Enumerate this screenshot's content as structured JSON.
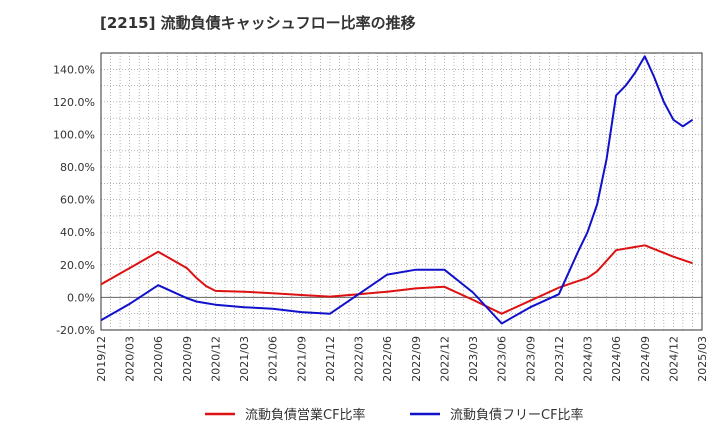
{
  "chart_data": {
    "type": "line",
    "title": "[2215]  流動負債キャッシュフロー比率の推移",
    "xlabel": "",
    "ylabel": "",
    "ylim": [
      -20,
      150
    ],
    "y_ticks": [
      "-20.0%",
      "0.0%",
      "20.0%",
      "40.0%",
      "60.0%",
      "80.0%",
      "100.0%",
      "120.0%",
      "140.0%"
    ],
    "y_tick_values": [
      -20,
      0,
      20,
      40,
      60,
      80,
      100,
      120,
      140
    ],
    "x_tick_labels": [
      "2019/12",
      "2020/03",
      "2020/06",
      "2020/09",
      "2020/12",
      "2021/03",
      "2021/06",
      "2021/09",
      "2021/12",
      "2022/03",
      "2022/06",
      "2022/09",
      "2022/12",
      "2023/03",
      "2023/06",
      "2023/09",
      "2023/12",
      "2024/03",
      "2024/06",
      "2024/09",
      "2024/12",
      "2025/03"
    ],
    "x_range_months": [
      0,
      63
    ],
    "series": [
      {
        "name": "流動負債営業CF比率",
        "color": "#dd1111",
        "x": [
          0,
          3,
          6,
          9,
          10,
          11,
          12,
          15,
          18,
          21,
          24,
          27,
          30,
          33,
          36,
          39,
          42,
          45,
          48,
          50,
          51,
          52,
          54,
          57,
          60,
          62
        ],
        "values": [
          8,
          18,
          28,
          18,
          12,
          7,
          4,
          3.5,
          2.5,
          1.5,
          0.5,
          2,
          3.5,
          5.5,
          6.5,
          -1.5,
          -10,
          -2,
          6,
          10,
          12,
          16,
          29,
          32,
          25,
          21
        ]
      },
      {
        "name": "流動負債フリーCF比率",
        "color": "#1111cc",
        "x": [
          0,
          3,
          6,
          9,
          10,
          11,
          12,
          15,
          18,
          21,
          24,
          27,
          30,
          33,
          36,
          39,
          42,
          45,
          48,
          50,
          51,
          52,
          53,
          54,
          55,
          56,
          57,
          58,
          59,
          60,
          61,
          62
        ],
        "values": [
          -14,
          -4,
          7.5,
          -0.5,
          -2.5,
          -3.5,
          -4.5,
          -6,
          -7,
          -9,
          -10,
          2,
          14,
          17,
          17,
          3,
          -16,
          -6,
          2,
          28,
          40,
          57,
          85,
          124,
          130,
          138,
          148,
          135,
          120,
          109,
          105,
          109
        ]
      }
    ],
    "legend_position": "bottom",
    "grid": true
  }
}
